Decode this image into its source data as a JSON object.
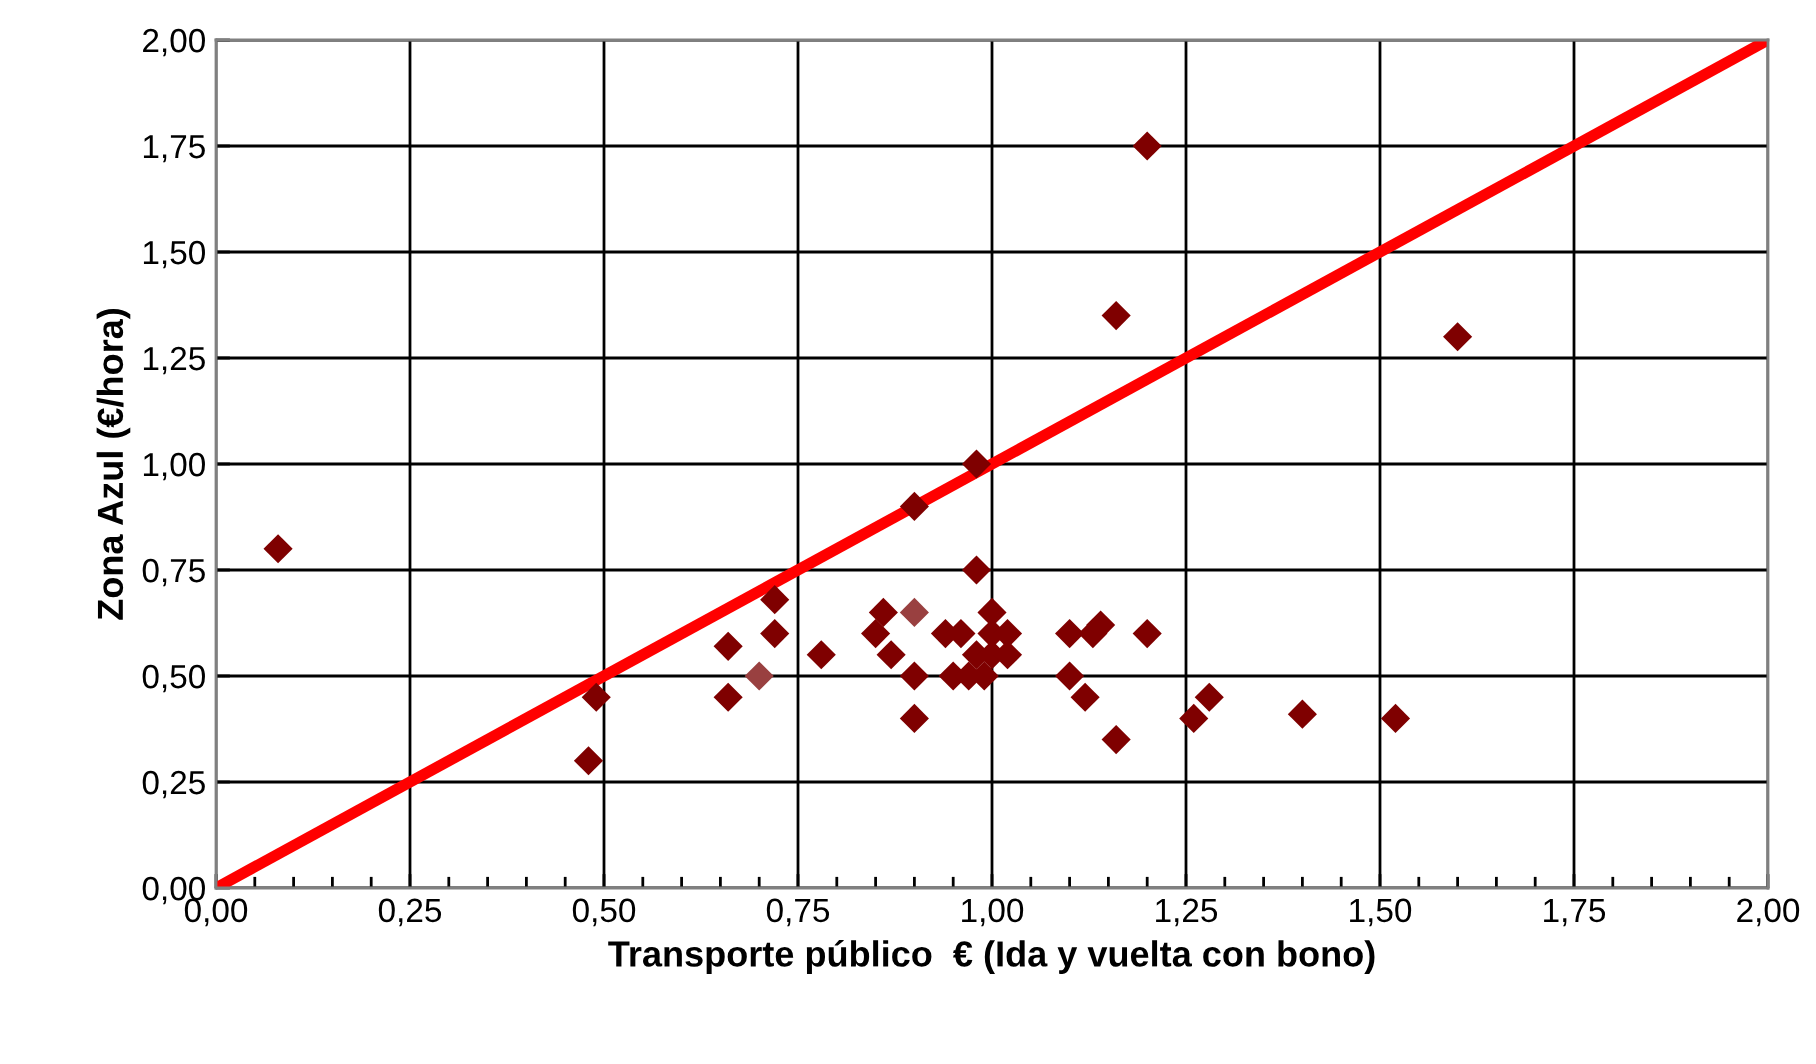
{
  "chart_data": {
    "type": "scatter",
    "xlabel": "Transporte público  € (Ida y vuelta con bono)",
    "ylabel": "Zona Azul (€/hora)",
    "xlim": [
      0,
      2
    ],
    "ylim": [
      0,
      2
    ],
    "xticks": [
      {
        "value": 0,
        "label": "0,00"
      },
      {
        "value": 0.25,
        "label": "0,25"
      },
      {
        "value": 0.5,
        "label": "0,50"
      },
      {
        "value": 0.75,
        "label": "0,75"
      },
      {
        "value": 1,
        "label": "1,00"
      },
      {
        "value": 1.25,
        "label": "1,25"
      },
      {
        "value": 1.5,
        "label": "1,50"
      },
      {
        "value": 1.75,
        "label": "1,75"
      },
      {
        "value": 2,
        "label": "2,00"
      }
    ],
    "yticks": [
      {
        "value": 0,
        "label": "0,00"
      },
      {
        "value": 0.25,
        "label": "0,25"
      },
      {
        "value": 0.5,
        "label": "0,50"
      },
      {
        "value": 0.75,
        "label": "0,75"
      },
      {
        "value": 1,
        "label": "1,00"
      },
      {
        "value": 1.25,
        "label": "1,25"
      },
      {
        "value": 1.5,
        "label": "1,50"
      },
      {
        "value": 1.75,
        "label": "1,75"
      },
      {
        "value": 2,
        "label": "2,00"
      }
    ],
    "grid": true,
    "legend": false,
    "marker": "diamond",
    "series": [
      {
        "x": [
          0.08,
          0.48,
          0.49,
          0.66,
          0.66,
          0.7,
          0.72,
          0.72,
          0.78,
          0.85,
          0.86,
          0.87,
          0.9,
          0.9,
          0.9,
          0.9,
          0.94,
          0.95,
          0.96,
          0.97,
          0.98,
          0.98,
          0.98,
          0.99,
          1.0,
          1.0,
          1.0,
          1.02,
          1.02,
          1.1,
          1.1,
          1.12,
          1.13,
          1.14,
          1.16,
          1.16,
          1.2,
          1.2,
          1.26,
          1.28,
          1.4,
          1.52,
          1.6
        ],
        "values": [
          0.8,
          0.3,
          0.45,
          0.57,
          0.45,
          0.5,
          0.68,
          0.6,
          0.55,
          0.6,
          0.65,
          0.55,
          0.65,
          0.9,
          0.5,
          0.4,
          0.6,
          0.5,
          0.6,
          0.5,
          1.0,
          0.75,
          0.55,
          0.5,
          0.65,
          0.6,
          0.55,
          0.6,
          0.55,
          0.6,
          0.5,
          0.45,
          0.6,
          0.62,
          1.35,
          0.35,
          1.75,
          0.6,
          0.4,
          0.45,
          0.41,
          0.4,
          1.3
        ],
        "colors": [
          "#7f0000",
          "#7f0000",
          "#7f0000",
          "#7f0000",
          "#7f0000",
          "#994040",
          "#7f0000",
          "#7f0000",
          "#7f0000",
          "#7f0000",
          "#7f0000",
          "#7f0000",
          "#994040",
          "#7f0000",
          "#7f0000",
          "#7f0000",
          "#7f0000",
          "#7f0000",
          "#7f0000",
          "#7f0000",
          "#7f0000",
          "#7f0000",
          "#7f0000",
          "#7f0000",
          "#7f0000",
          "#7f0000",
          "#7f0000",
          "#7f0000",
          "#7f0000",
          "#7f0000",
          "#7f0000",
          "#7f0000",
          "#7f0000",
          "#7f0000",
          "#7f0000",
          "#7f0000",
          "#7f0000",
          "#7f0000",
          "#7f0000",
          "#7f0000",
          "#7f0000",
          "#7f0000",
          "#7f0000"
        ]
      },
      {
        "type": "line",
        "color": "#ff0000",
        "marker": "none",
        "x": [
          0,
          2
        ],
        "values": [
          0,
          2
        ]
      }
    ]
  }
}
